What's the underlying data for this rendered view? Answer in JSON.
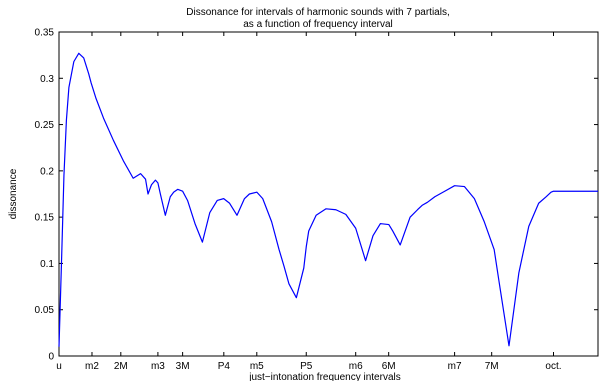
{
  "chart_data": {
    "type": "line",
    "title": "Dissonance for intervals of harmonic sounds with 7 partials,",
    "subtitle": "as a function of frequency interval",
    "xlabel": "just−intonation frequency intervals",
    "ylabel": "dissonance",
    "xlim": [
      1.0,
      2.09
    ],
    "ylim": [
      0,
      0.35
    ],
    "y_ticks": [
      0,
      0.05,
      0.1,
      0.15,
      0.2,
      0.25,
      0.3,
      0.35
    ],
    "y_tick_labels": [
      "0",
      "0.05",
      "0.1",
      "0.15",
      "0.2",
      "0.25",
      "0.3",
      "0.35"
    ],
    "x_ticks": [
      1.0,
      1.0667,
      1.125,
      1.2,
      1.25,
      1.3333,
      1.4,
      1.5,
      1.6,
      1.6667,
      1.8,
      1.875,
      2.0
    ],
    "x_tick_labels": [
      "u",
      "m2",
      "2M",
      "m3",
      "3M",
      "P4",
      "m5",
      "P5",
      "m6",
      "6M",
      "m7",
      "7M",
      "oct."
    ],
    "grid": false,
    "series": [
      {
        "color": "#0000ff",
        "x": [
          1.0,
          1.005,
          1.01,
          1.015,
          1.02,
          1.03,
          1.04,
          1.05,
          1.06,
          1.065,
          1.075,
          1.09,
          1.11,
          1.13,
          1.15,
          1.165,
          1.175,
          1.18,
          1.187,
          1.195,
          1.2,
          1.205,
          1.215,
          1.225,
          1.232,
          1.24,
          1.25,
          1.26,
          1.275,
          1.29,
          1.305,
          1.32,
          1.333,
          1.345,
          1.36,
          1.375,
          1.385,
          1.4,
          1.412,
          1.43,
          1.445,
          1.455,
          1.465,
          1.48,
          1.495,
          1.5,
          1.505,
          1.52,
          1.54,
          1.56,
          1.58,
          1.6,
          1.62,
          1.635,
          1.65,
          1.667,
          1.675,
          1.69,
          1.71,
          1.725,
          1.735,
          1.745,
          1.76,
          1.78,
          1.8,
          1.82,
          1.84,
          1.86,
          1.88,
          1.89,
          1.91,
          1.93,
          1.95,
          1.97,
          1.985,
          1.995,
          2.0,
          2.005,
          2.02,
          2.04,
          2.06,
          2.075,
          2.09
        ],
        "y": [
          0.01,
          0.1,
          0.195,
          0.255,
          0.29,
          0.318,
          0.327,
          0.322,
          0.305,
          0.295,
          0.278,
          0.257,
          0.233,
          0.211,
          0.192,
          0.197,
          0.191,
          0.175,
          0.185,
          0.19,
          0.187,
          0.175,
          0.152,
          0.172,
          0.177,
          0.18,
          0.178,
          0.168,
          0.143,
          0.123,
          0.155,
          0.168,
          0.17,
          0.165,
          0.152,
          0.17,
          0.175,
          0.177,
          0.17,
          0.145,
          0.115,
          0.097,
          0.078,
          0.063,
          0.095,
          0.118,
          0.135,
          0.152,
          0.159,
          0.158,
          0.153,
          0.138,
          0.103,
          0.13,
          0.143,
          0.142,
          0.135,
          0.12,
          0.15,
          0.158,
          0.163,
          0.166,
          0.172,
          0.178,
          0.184,
          0.183,
          0.17,
          0.145,
          0.115,
          0.08,
          0.011,
          0.09,
          0.14,
          0.165,
          0.172,
          0.177,
          0.178,
          0.178,
          0.178,
          0.178,
          0.178,
          0.178,
          0.178
        ]
      }
    ]
  }
}
